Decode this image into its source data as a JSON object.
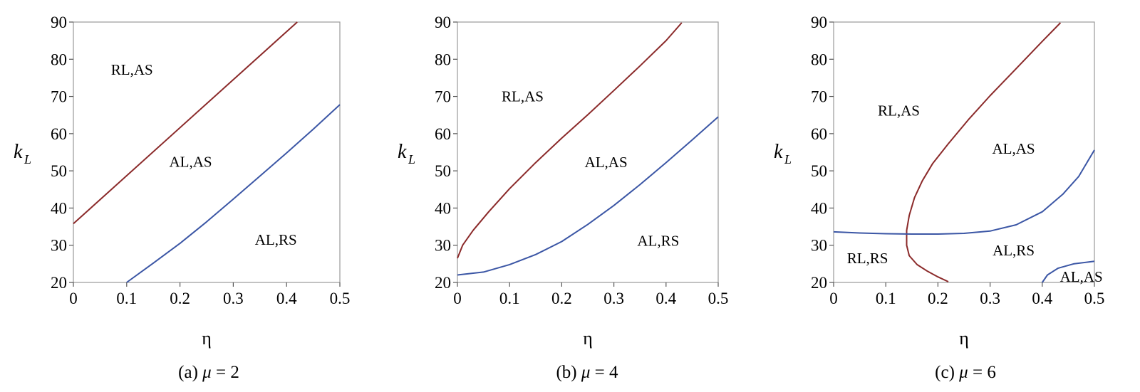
{
  "chart_data": [
    {
      "type": "line",
      "caption_prefix": "(a) ",
      "caption_symbol": "μ",
      "caption_suffix": " = 2",
      "xlabel": "η",
      "ylabel_main": "k",
      "ylabel_sub": "L",
      "xlim": [
        0,
        0.5
      ],
      "ylim": [
        20,
        90
      ],
      "xticks": [
        0,
        0.1,
        0.2,
        0.3,
        0.4,
        0.5
      ],
      "xtick_labels": [
        "0",
        "0.1",
        "0.2",
        "0.3",
        "0.4",
        "0.5"
      ],
      "yticks": [
        20,
        30,
        40,
        50,
        60,
        70,
        80,
        90
      ],
      "ytick_labels": [
        "20",
        "30",
        "40",
        "50",
        "60",
        "70",
        "80",
        "90"
      ],
      "grid": false,
      "series": [
        {
          "color": "#8b2a2a",
          "points": [
            [
              0,
              35.8
            ],
            [
              0.42,
              90
            ]
          ]
        },
        {
          "color": "#3b56a5",
          "points": [
            [
              0.1,
              20
            ],
            [
              0.15,
              25.2
            ],
            [
              0.2,
              30.5
            ],
            [
              0.25,
              36.3
            ],
            [
              0.3,
              42.4
            ],
            [
              0.35,
              48.6
            ],
            [
              0.4,
              54.8
            ],
            [
              0.45,
              61.2
            ],
            [
              0.5,
              67.8
            ]
          ]
        }
      ],
      "annotations": [
        {
          "text": "RL,AS",
          "x": 0.11,
          "y": 77.2
        },
        {
          "text": "AL,AS",
          "x": 0.22,
          "y": 52.4
        },
        {
          "text": "AL,RS",
          "x": 0.38,
          "y": 31.5
        }
      ]
    },
    {
      "type": "line",
      "caption_prefix": "(b) ",
      "caption_symbol": "μ",
      "caption_suffix": " = 4",
      "xlabel": "η",
      "ylabel_main": "k",
      "ylabel_sub": "L",
      "xlim": [
        0,
        0.5
      ],
      "ylim": [
        20,
        90
      ],
      "xticks": [
        0,
        0.1,
        0.2,
        0.3,
        0.4,
        0.5
      ],
      "xtick_labels": [
        "0",
        "0.1",
        "0.2",
        "0.3",
        "0.4",
        "0.5"
      ],
      "yticks": [
        20,
        30,
        40,
        50,
        60,
        70,
        80,
        90
      ],
      "ytick_labels": [
        "20",
        "30",
        "40",
        "50",
        "60",
        "70",
        "80",
        "90"
      ],
      "grid": false,
      "series": [
        {
          "color": "#8b2a2a",
          "points": [
            [
              0,
              26.5
            ],
            [
              0.01,
              30
            ],
            [
              0.03,
              34
            ],
            [
              0.06,
              39
            ],
            [
              0.1,
              45.2
            ],
            [
              0.15,
              52.2
            ],
            [
              0.2,
              58.8
            ],
            [
              0.25,
              65.1
            ],
            [
              0.3,
              71.6
            ],
            [
              0.35,
              78.2
            ],
            [
              0.4,
              85
            ],
            [
              0.43,
              89.8
            ]
          ]
        },
        {
          "color": "#3b56a5",
          "points": [
            [
              0,
              22
            ],
            [
              0.05,
              22.8
            ],
            [
              0.1,
              24.8
            ],
            [
              0.15,
              27.5
            ],
            [
              0.2,
              31
            ],
            [
              0.25,
              35.6
            ],
            [
              0.3,
              40.7
            ],
            [
              0.35,
              46.3
            ],
            [
              0.4,
              52.2
            ],
            [
              0.45,
              58.3
            ],
            [
              0.5,
              64.5
            ]
          ]
        }
      ],
      "annotations": [
        {
          "text": "RL,AS",
          "x": 0.125,
          "y": 70
        },
        {
          "text": "AL,AS",
          "x": 0.285,
          "y": 52.3
        },
        {
          "text": "AL,RS",
          "x": 0.385,
          "y": 31.2
        }
      ]
    },
    {
      "type": "line",
      "caption_prefix": "(c) ",
      "caption_symbol": "μ",
      "caption_suffix": " = 6",
      "xlabel": "η",
      "ylabel_main": "k",
      "ylabel_sub": "L",
      "xlim": [
        0,
        0.5
      ],
      "ylim": [
        20,
        90
      ],
      "xticks": [
        0,
        0.1,
        0.2,
        0.3,
        0.4,
        0.5
      ],
      "xtick_labels": [
        "0",
        "0.1",
        "0.2",
        "0.3",
        "0.4",
        "0.5"
      ],
      "yticks": [
        20,
        30,
        40,
        50,
        60,
        70,
        80,
        90
      ],
      "ytick_labels": [
        "20",
        "30",
        "40",
        "50",
        "60",
        "70",
        "80",
        "90"
      ],
      "grid": false,
      "series": [
        {
          "color": "#8b2a2a",
          "points": [
            [
              0.22,
              20.2
            ],
            [
              0.2,
              21.5
            ],
            [
              0.18,
              23
            ],
            [
              0.16,
              24.8
            ],
            [
              0.145,
              27.2
            ],
            [
              0.14,
              30
            ],
            [
              0.14,
              34
            ],
            [
              0.145,
              38
            ],
            [
              0.155,
              42.8
            ],
            [
              0.17,
              47.3
            ],
            [
              0.19,
              52
            ],
            [
              0.22,
              57.3
            ],
            [
              0.26,
              64
            ],
            [
              0.3,
              70.2
            ],
            [
              0.35,
              77.5
            ],
            [
              0.4,
              84.8
            ],
            [
              0.435,
              89.8
            ]
          ]
        },
        {
          "color": "#3b56a5",
          "points": [
            [
              0,
              33.6
            ],
            [
              0.05,
              33.3
            ],
            [
              0.1,
              33.1
            ],
            [
              0.15,
              33
            ],
            [
              0.2,
              33
            ],
            [
              0.25,
              33.2
            ],
            [
              0.3,
              33.8
            ],
            [
              0.35,
              35.5
            ],
            [
              0.4,
              39
            ],
            [
              0.44,
              43.8
            ],
            [
              0.47,
              48.5
            ],
            [
              0.5,
              55.6
            ]
          ]
        },
        {
          "color": "#3b56a5",
          "points": [
            [
              0.4,
              20
            ],
            [
              0.41,
              22
            ],
            [
              0.43,
              23.8
            ],
            [
              0.46,
              25
            ],
            [
              0.5,
              25.7
            ]
          ]
        }
      ],
      "annotations": [
        {
          "text": "RL,AS",
          "x": 0.125,
          "y": 66.2
        },
        {
          "text": "AL,AS",
          "x": 0.345,
          "y": 56
        },
        {
          "text": "RL,RS",
          "x": 0.065,
          "y": 26.5
        },
        {
          "text": "AL,RS",
          "x": 0.345,
          "y": 28.6
        },
        {
          "text": "AL,AS",
          "x": 0.475,
          "y": 21.5
        }
      ]
    }
  ]
}
